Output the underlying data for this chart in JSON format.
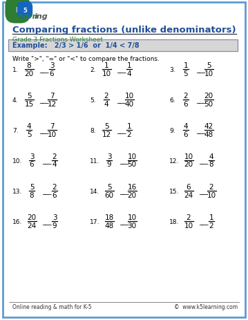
{
  "title": "Comparing fractions (unlike denominators)",
  "subtitle": "Grade 3 Fractions Worksheet",
  "example_text": "Example:   2/3 > 1/6  or  1/4 < 7/8",
  "instruction": "Write \">\", \"=\" or \"<\" to compare the fractions.",
  "border_color": "#5b9bd5",
  "title_color": "#1f4e99",
  "subtitle_color": "#2e7d32",
  "example_bg": "#d6d6d6",
  "example_border": "#8888aa",
  "example_color": "#1f4e99",
  "footer_left": "Online reading & math for K-5",
  "footer_right": "©  www.k5learning.com",
  "problems": [
    {
      "num": "1.",
      "n1": "8",
      "d1": "20",
      "n2": "3",
      "d2": "6"
    },
    {
      "num": "2.",
      "n1": "1",
      "d1": "10",
      "n2": "1",
      "d2": "4"
    },
    {
      "num": "3.",
      "n1": "1",
      "d1": "5",
      "n2": "5",
      "d2": "10"
    },
    {
      "num": "4.",
      "n1": "5",
      "d1": "15",
      "n2": "7",
      "d2": "12"
    },
    {
      "num": "5.",
      "n1": "2",
      "d1": "4",
      "n2": "10",
      "d2": "40"
    },
    {
      "num": "6.",
      "n1": "2",
      "d1": "6",
      "n2": "20",
      "d2": "50"
    },
    {
      "num": "7.",
      "n1": "4",
      "d1": "5",
      "n2": "7",
      "d2": "10"
    },
    {
      "num": "8.",
      "n1": "5",
      "d1": "12",
      "n2": "1",
      "d2": "2"
    },
    {
      "num": "9.",
      "n1": "4",
      "d1": "6",
      "n2": "42",
      "d2": "48"
    },
    {
      "num": "10.",
      "n1": "3",
      "d1": "6",
      "n2": "2",
      "d2": "4"
    },
    {
      "num": "11.",
      "n1": "3",
      "d1": "9",
      "n2": "10",
      "d2": "50"
    },
    {
      "num": "12.",
      "n1": "10",
      "d1": "20",
      "n2": "4",
      "d2": "8"
    },
    {
      "num": "13.",
      "n1": "5",
      "d1": "8",
      "n2": "2",
      "d2": "6"
    },
    {
      "num": "14.",
      "n1": "5",
      "d1": "60",
      "n2": "16",
      "d2": "20"
    },
    {
      "num": "15.",
      "n1": "6",
      "d1": "24",
      "n2": "2",
      "d2": "10"
    },
    {
      "num": "16.",
      "n1": "20",
      "d1": "24",
      "n2": "3",
      "d2": "9"
    },
    {
      "num": "17.",
      "n1": "18",
      "d1": "48",
      "n2": "10",
      "d2": "30"
    },
    {
      "num": "18.",
      "n1": "2",
      "d1": "10",
      "n2": "1",
      "d2": "2"
    }
  ]
}
